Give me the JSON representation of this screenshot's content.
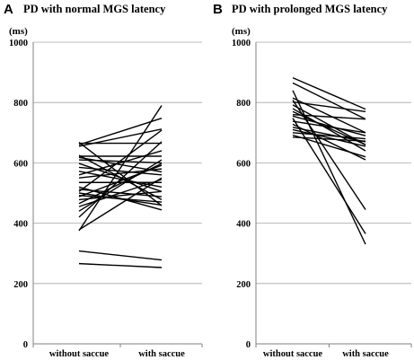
{
  "chart_data": [
    {
      "type": "line",
      "panel_label": "A",
      "title": "PD with normal MGS latency",
      "ylabel": "(ms)",
      "categories": [
        "without saccue",
        "with saccue"
      ],
      "ylim": [
        0,
        1000
      ],
      "yticks": [
        0,
        200,
        400,
        600,
        800,
        1000
      ],
      "grid": true,
      "series": [
        {
          "values": [
            266,
            253
          ]
        },
        {
          "values": [
            308,
            278
          ]
        },
        {
          "values": [
            375,
            790
          ]
        },
        {
          "values": [
            378,
            550
          ]
        },
        {
          "values": [
            420,
            670
          ]
        },
        {
          "values": [
            440,
            610
          ]
        },
        {
          "values": [
            455,
            545
          ]
        },
        {
          "values": [
            465,
            598
          ]
        },
        {
          "values": [
            478,
            505
          ]
        },
        {
          "values": [
            488,
            592
          ]
        },
        {
          "values": [
            492,
            470
          ]
        },
        {
          "values": [
            500,
            460
          ]
        },
        {
          "values": [
            505,
            708
          ]
        },
        {
          "values": [
            512,
            488
          ]
        },
        {
          "values": [
            520,
            444
          ]
        },
        {
          "values": [
            535,
            535
          ]
        },
        {
          "values": [
            550,
            580
          ]
        },
        {
          "values": [
            560,
            640
          ]
        },
        {
          "values": [
            572,
            520
          ]
        },
        {
          "values": [
            585,
            560
          ]
        },
        {
          "values": [
            598,
            505
          ]
        },
        {
          "values": [
            610,
            600
          ]
        },
        {
          "values": [
            618,
            570
          ]
        },
        {
          "values": [
            622,
            622
          ]
        },
        {
          "values": [
            625,
            478
          ]
        },
        {
          "values": [
            655,
            712
          ]
        },
        {
          "values": [
            660,
            748
          ]
        },
        {
          "values": [
            665,
            665
          ]
        },
        {
          "values": [
            668,
            458
          ]
        }
      ]
    },
    {
      "type": "line",
      "panel_label": "B",
      "title": "PD with prolonged MGS latency",
      "ylabel": "(ms)",
      "categories": [
        "without saccue",
        "with saccue"
      ],
      "ylim": [
        0,
        1000
      ],
      "yticks": [
        0,
        200,
        400,
        600,
        800,
        1000
      ],
      "grid": true,
      "series": [
        {
          "values": [
            882,
            778
          ]
        },
        {
          "values": [
            865,
            745
          ]
        },
        {
          "values": [
            840,
            330
          ]
        },
        {
          "values": [
            815,
            700
          ]
        },
        {
          "values": [
            808,
            445
          ]
        },
        {
          "values": [
            802,
            770
          ]
        },
        {
          "values": [
            792,
            660
          ]
        },
        {
          "values": [
            780,
            640
          ]
        },
        {
          "values": [
            770,
            660
          ]
        },
        {
          "values": [
            760,
            745
          ]
        },
        {
          "values": [
            755,
            690
          ]
        },
        {
          "values": [
            748,
            365
          ]
        },
        {
          "values": [
            738,
            700
          ]
        },
        {
          "values": [
            728,
            610
          ]
        },
        {
          "values": [
            718,
            670
          ]
        },
        {
          "values": [
            710,
            655
          ]
        },
        {
          "values": [
            700,
            680
          ]
        },
        {
          "values": [
            692,
            620
          ]
        },
        {
          "values": [
            685,
            672
          ]
        }
      ]
    }
  ]
}
